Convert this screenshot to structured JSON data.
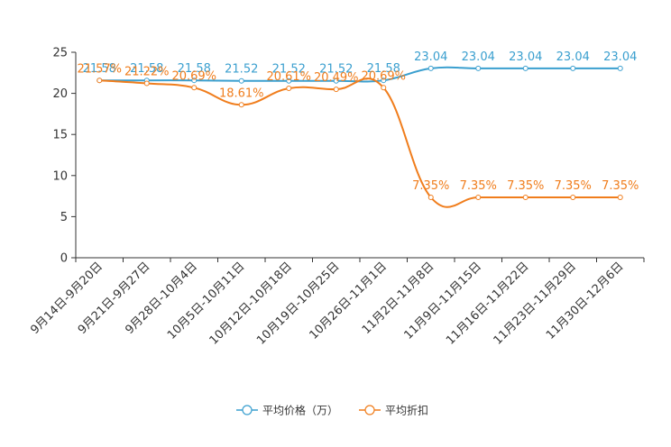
{
  "chart_data": {
    "type": "line",
    "title": "",
    "xlabel": "",
    "ylabel": "",
    "ylim": [
      0,
      25
    ],
    "yticks": [
      0,
      5,
      10,
      15,
      20,
      25
    ],
    "grid": false,
    "legend_position": "bottom-center",
    "categories": [
      "9月14日-9月20日",
      "9月21日-9月27日",
      "9月28日-10月4日",
      "10月5日-10月11日",
      "10月12日-10月18日",
      "10月19日-10月25日",
      "10月26日-11月1日",
      "11月2日-11月8日",
      "11月9日-11月15日",
      "11月16日-11月22日",
      "11月23日-11月29日",
      "11月30日-12月6日"
    ],
    "series": [
      {
        "name": "平均价格（万）",
        "color": "#3a9fcf",
        "values": [
          21.58,
          21.58,
          21.58,
          21.52,
          21.52,
          21.52,
          21.58,
          23.04,
          23.04,
          23.04,
          23.04,
          23.04
        ],
        "labels": [
          "21.58",
          "21.58",
          "21.58",
          "21.52",
          "21.52",
          "21.52",
          "21.58",
          "23.04",
          "23.04",
          "23.04",
          "23.04",
          "23.04"
        ]
      },
      {
        "name": "平均折扣",
        "color": "#f07d1c",
        "values": [
          21.57,
          21.22,
          20.69,
          18.61,
          20.61,
          20.49,
          20.69,
          7.35,
          7.35,
          7.35,
          7.35,
          7.35
        ],
        "labels": [
          "21.57%",
          "21.22%",
          "20.69%",
          "18.61%",
          "20.61%",
          "20.49%",
          "20.69%",
          "7.35%",
          "7.35%",
          "7.35%",
          "7.35%",
          "7.35%"
        ]
      }
    ]
  }
}
